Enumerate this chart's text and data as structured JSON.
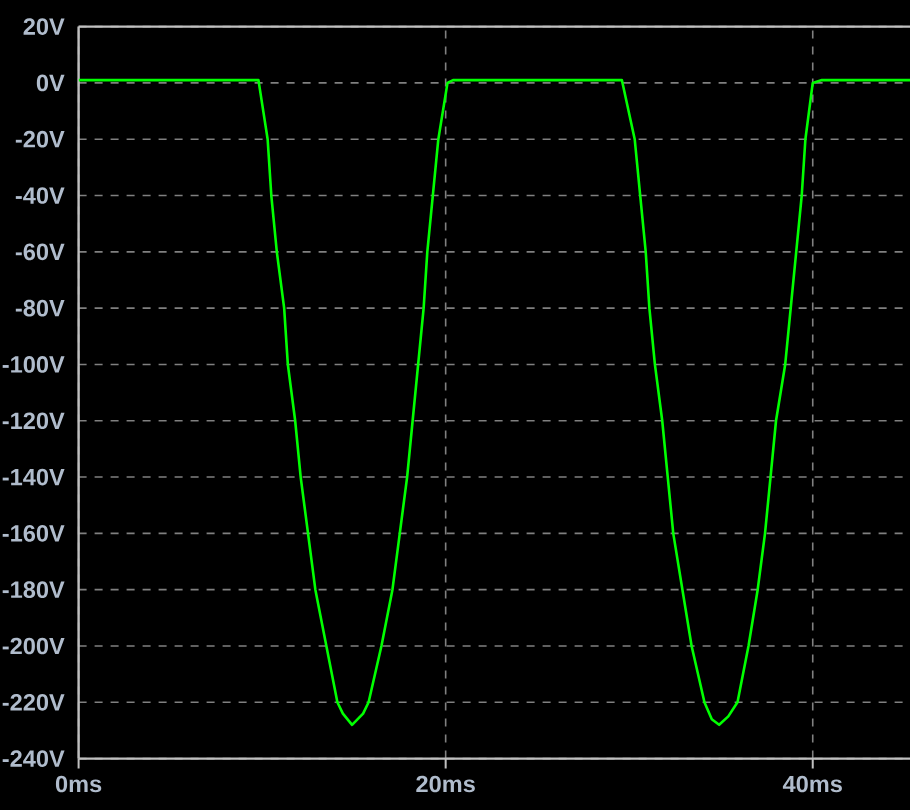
{
  "chart_data": {
    "type": "line",
    "x": [
      0,
      9.8,
      10.3,
      10.5,
      10.8,
      11.2,
      11.4,
      11.8,
      12.1,
      12.5,
      12.9,
      13.5,
      14.1,
      14.4,
      14.9,
      15.5,
      15.8,
      16.5,
      17.1,
      17.5,
      17.9,
      18.2,
      18.5,
      18.8,
      19.0,
      19.3,
      19.6,
      20.1,
      20.4,
      29.6,
      30.3,
      30.6,
      30.9,
      31.1,
      31.4,
      31.8,
      32.1,
      32.4,
      32.9,
      33.4,
      34.1,
      34.5,
      34.9,
      35.4,
      35.9,
      36.5,
      37.0,
      37.4,
      37.7,
      38.0,
      38.5,
      38.8,
      39.1,
      39.4,
      39.6,
      40.0,
      40.5,
      45.3
    ],
    "values": [
      1,
      1,
      -20,
      -40,
      -60,
      -80,
      -100,
      -120,
      -140,
      -160,
      -180,
      -200,
      -220,
      -224,
      -228,
      -224,
      -220,
      -200,
      -180,
      -160,
      -140,
      -120,
      -100,
      -80,
      -60,
      -40,
      -20,
      0,
      1,
      1,
      -20,
      -40,
      -60,
      -80,
      -100,
      -120,
      -140,
      -160,
      -180,
      -200,
      -220,
      -226,
      -228,
      -225,
      -220,
      -200,
      -180,
      -160,
      -140,
      -120,
      -100,
      -80,
      -60,
      -40,
      -20,
      0,
      1,
      1
    ],
    "color": "#00ff00",
    "xlim": [
      0,
      45.3
    ],
    "ylim": [
      -240,
      20
    ],
    "xticks": [
      {
        "value": 0,
        "label": "0ms"
      },
      {
        "value": 20,
        "label": "20ms"
      },
      {
        "value": 40,
        "label": "40ms"
      }
    ],
    "yticks": [
      {
        "value": 20,
        "label": "20V"
      },
      {
        "value": 0,
        "label": "0V"
      },
      {
        "value": -20,
        "label": "-20V"
      },
      {
        "value": -40,
        "label": "-40V"
      },
      {
        "value": -60,
        "label": "-60V"
      },
      {
        "value": -80,
        "label": "-80V"
      },
      {
        "value": -100,
        "label": "-100V"
      },
      {
        "value": -120,
        "label": "-120V"
      },
      {
        "value": -140,
        "label": "-140V"
      },
      {
        "value": -160,
        "label": "-160V"
      },
      {
        "value": -180,
        "label": "-180V"
      },
      {
        "value": -200,
        "label": "-200V"
      },
      {
        "value": -220,
        "label": "-220V"
      },
      {
        "value": -240,
        "label": "-240V"
      }
    ],
    "grid": true
  }
}
